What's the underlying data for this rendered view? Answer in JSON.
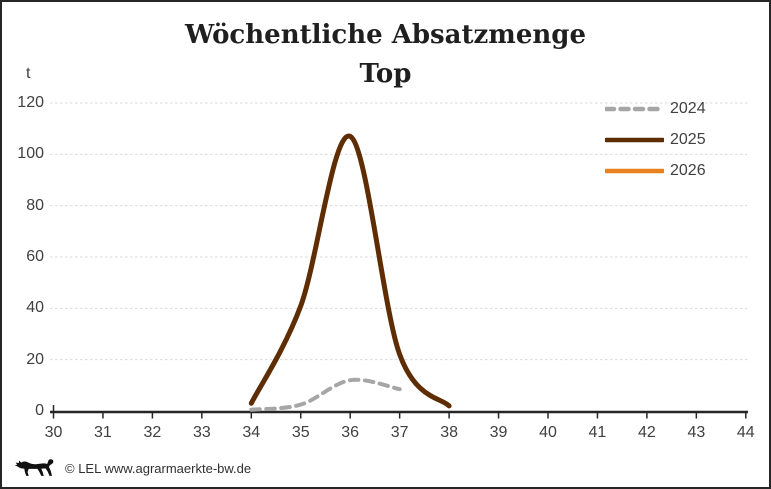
{
  "title": {
    "line1": "Wöchentliche Absatzmenge",
    "line2": "Top"
  },
  "y_unit": "t",
  "footer": {
    "credit": "© LEL www.agrarmaerkte-bw.de",
    "logo": "baden-wuerttemberg-lion"
  },
  "legend": {
    "position": "right-top",
    "items": [
      {
        "label": "2024",
        "color": "#A6A6A6",
        "style": "dashed"
      },
      {
        "label": "2025",
        "color": "#5E2D04",
        "style": "solid"
      },
      {
        "label": "2026",
        "color": "#E8821E",
        "style": "solid"
      }
    ]
  },
  "colors": {
    "axis": "#262626",
    "grid": "#DADADA",
    "tick_label": "#404040",
    "title": "#1F1F1F",
    "border": "#262626",
    "background": "#FFFFFF"
  },
  "chart_data": {
    "type": "line",
    "title": "Wöchentliche Absatzmenge Top",
    "xlabel": "",
    "ylabel": "t",
    "xlim": [
      30,
      44
    ],
    "ylim": [
      0,
      120
    ],
    "x_ticks": [
      30,
      31,
      32,
      33,
      34,
      35,
      36,
      37,
      38,
      39,
      40,
      41,
      42,
      43,
      44
    ],
    "y_ticks": [
      0,
      20,
      40,
      60,
      80,
      100,
      120
    ],
    "grid": "horizontal-dashed",
    "legend_position": "right-top",
    "series": [
      {
        "name": "2024",
        "style": "dashed",
        "color": "#A6A6A6",
        "x": [
          34,
          35,
          36,
          37
        ],
        "y": [
          0.5,
          2.5,
          12,
          8.5
        ]
      },
      {
        "name": "2025",
        "style": "solid",
        "color": "#5E2D04",
        "x": [
          34,
          35,
          36,
          37,
          38
        ],
        "y": [
          3,
          41,
          107,
          22,
          2
        ]
      },
      {
        "name": "2026",
        "style": "solid",
        "color": "#E8821E",
        "x": [],
        "y": []
      }
    ]
  }
}
